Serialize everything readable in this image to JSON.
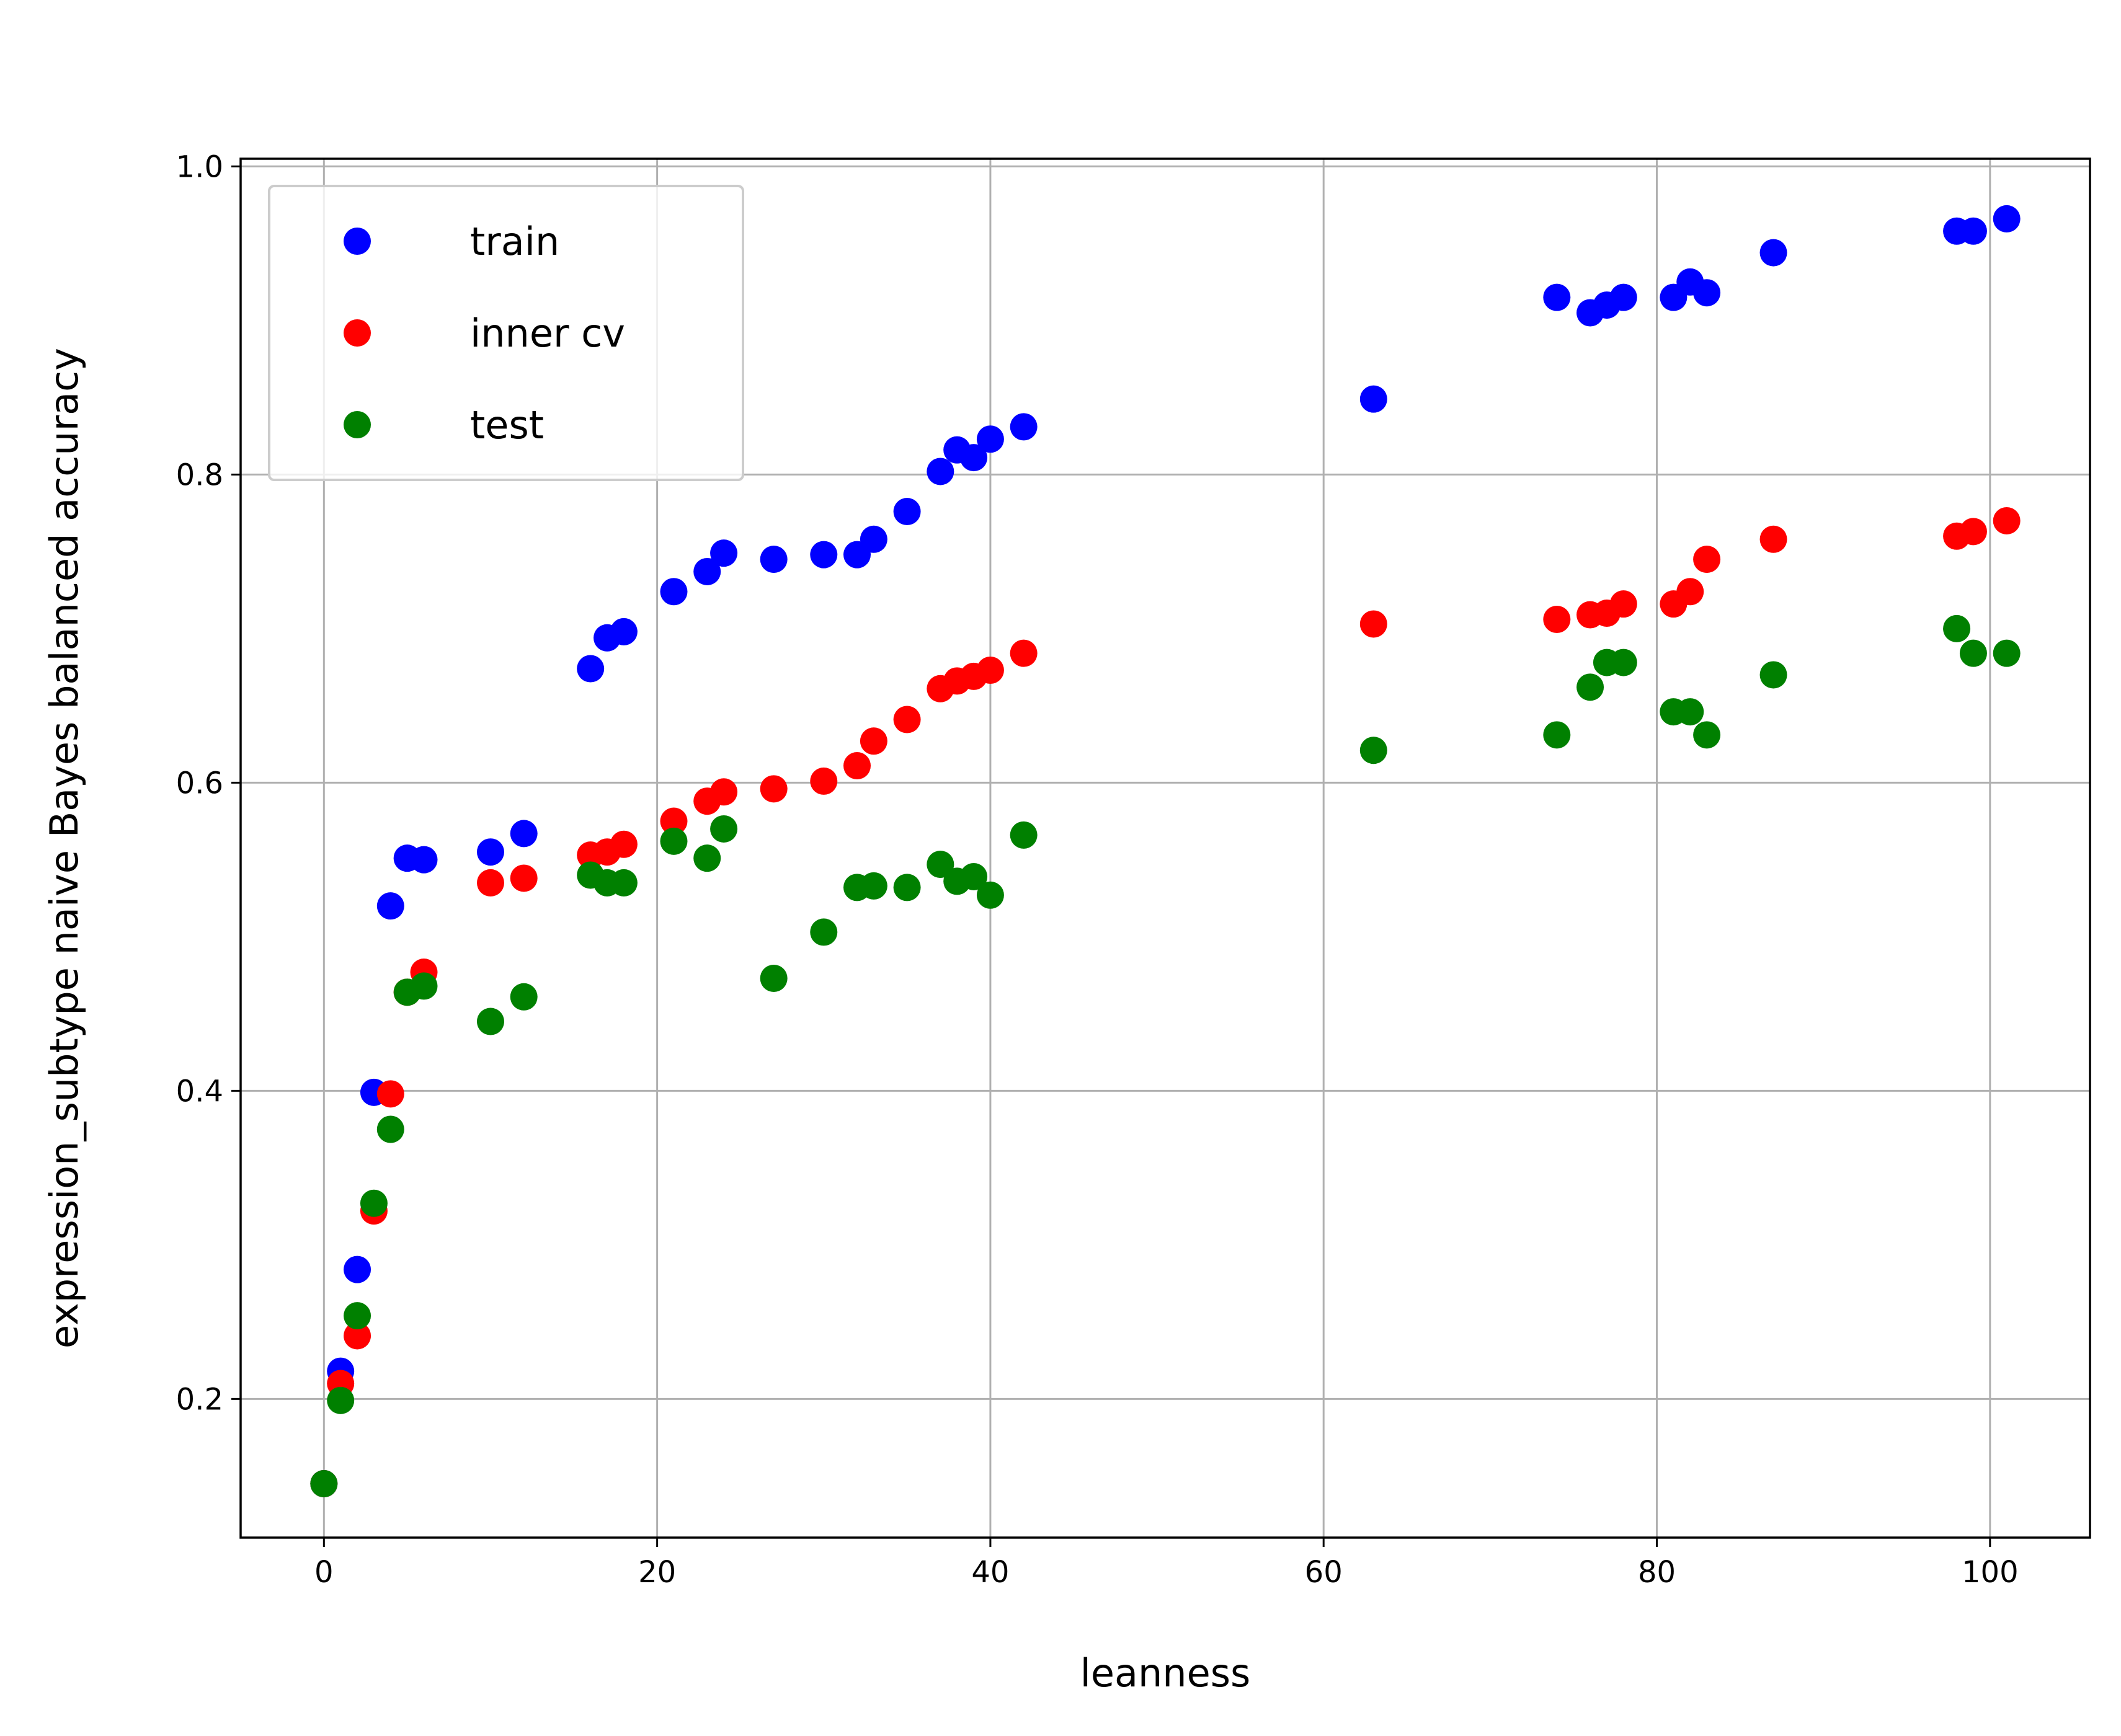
{
  "chart_data": {
    "type": "scatter",
    "xlabel": "leanness",
    "ylabel": "expression_subtype naive Bayes balanced accuracy",
    "xlim": [
      -5,
      106
    ],
    "ylim": [
      0.11,
      1.005
    ],
    "xticks": [
      0,
      20,
      40,
      60,
      80,
      100
    ],
    "yticks": [
      0.2,
      0.4,
      0.6,
      0.8,
      1.0
    ],
    "xtick_labels": [
      "0",
      "20",
      "40",
      "60",
      "80",
      "100"
    ],
    "ytick_labels": [
      "0.2",
      "0.4",
      "0.6",
      "0.8",
      "1.0"
    ],
    "grid": true,
    "legend_position": "top-left",
    "series": [
      {
        "name": "train",
        "color": "#0000ff",
        "points": [
          [
            0,
            0.145
          ],
          [
            1,
            0.218
          ],
          [
            2,
            0.284
          ],
          [
            3,
            0.399
          ],
          [
            4,
            0.52
          ],
          [
            5,
            0.551
          ],
          [
            6,
            0.55
          ],
          [
            10,
            0.555
          ],
          [
            12,
            0.567
          ],
          [
            16,
            0.674
          ],
          [
            17,
            0.694
          ],
          [
            18,
            0.698
          ],
          [
            21,
            0.724
          ],
          [
            23,
            0.737
          ],
          [
            24,
            0.749
          ],
          [
            27,
            0.745
          ],
          [
            30,
            0.748
          ],
          [
            32,
            0.748
          ],
          [
            33,
            0.758
          ],
          [
            35,
            0.776
          ],
          [
            37,
            0.802
          ],
          [
            38,
            0.816
          ],
          [
            39,
            0.811
          ],
          [
            40,
            0.823
          ],
          [
            42,
            0.831
          ],
          [
            63,
            0.849
          ],
          [
            74,
            0.915
          ],
          [
            76,
            0.905
          ],
          [
            77,
            0.91
          ],
          [
            78,
            0.915
          ],
          [
            81,
            0.915
          ],
          [
            82,
            0.925
          ],
          [
            83,
            0.918
          ],
          [
            87,
            0.944
          ],
          [
            98,
            0.958
          ],
          [
            99,
            0.958
          ],
          [
            101,
            0.966
          ]
        ]
      },
      {
        "name": "inner cv",
        "color": "#ff0000",
        "points": [
          [
            0,
            0.145
          ],
          [
            1,
            0.21
          ],
          [
            2,
            0.241
          ],
          [
            3,
            0.322
          ],
          [
            4,
            0.398
          ],
          [
            5,
            0.464
          ],
          [
            6,
            0.477
          ],
          [
            10,
            0.535
          ],
          [
            12,
            0.538
          ],
          [
            16,
            0.553
          ],
          [
            17,
            0.555
          ],
          [
            18,
            0.56
          ],
          [
            21,
            0.575
          ],
          [
            23,
            0.588
          ],
          [
            24,
            0.594
          ],
          [
            27,
            0.596
          ],
          [
            30,
            0.601
          ],
          [
            32,
            0.611
          ],
          [
            33,
            0.627
          ],
          [
            35,
            0.641
          ],
          [
            37,
            0.661
          ],
          [
            38,
            0.666
          ],
          [
            39,
            0.669
          ],
          [
            40,
            0.673
          ],
          [
            42,
            0.684
          ],
          [
            63,
            0.703
          ],
          [
            74,
            0.706
          ],
          [
            76,
            0.709
          ],
          [
            77,
            0.71
          ],
          [
            78,
            0.716
          ],
          [
            81,
            0.716
          ],
          [
            82,
            0.724
          ],
          [
            83,
            0.745
          ],
          [
            87,
            0.758
          ],
          [
            98,
            0.76
          ],
          [
            99,
            0.763
          ],
          [
            101,
            0.77
          ]
        ]
      },
      {
        "name": "test",
        "color": "#008000",
        "points": [
          [
            0,
            0.145
          ],
          [
            1,
            0.199
          ],
          [
            2,
            0.254
          ],
          [
            3,
            0.327
          ],
          [
            4,
            0.375
          ],
          [
            5,
            0.464
          ],
          [
            6,
            0.468
          ],
          [
            10,
            0.445
          ],
          [
            12,
            0.461
          ],
          [
            16,
            0.54
          ],
          [
            17,
            0.535
          ],
          [
            18,
            0.535
          ],
          [
            21,
            0.562
          ],
          [
            23,
            0.551
          ],
          [
            24,
            0.57
          ],
          [
            27,
            0.473
          ],
          [
            30,
            0.503
          ],
          [
            32,
            0.532
          ],
          [
            33,
            0.533
          ],
          [
            35,
            0.532
          ],
          [
            37,
            0.547
          ],
          [
            38,
            0.536
          ],
          [
            39,
            0.539
          ],
          [
            40,
            0.527
          ],
          [
            42,
            0.566
          ],
          [
            63,
            0.621
          ],
          [
            74,
            0.631
          ],
          [
            76,
            0.662
          ],
          [
            77,
            0.678
          ],
          [
            78,
            0.678
          ],
          [
            81,
            0.646
          ],
          [
            82,
            0.646
          ],
          [
            83,
            0.631
          ],
          [
            87,
            0.67
          ],
          [
            98,
            0.7
          ],
          [
            99,
            0.684
          ],
          [
            101,
            0.684
          ]
        ]
      }
    ]
  }
}
